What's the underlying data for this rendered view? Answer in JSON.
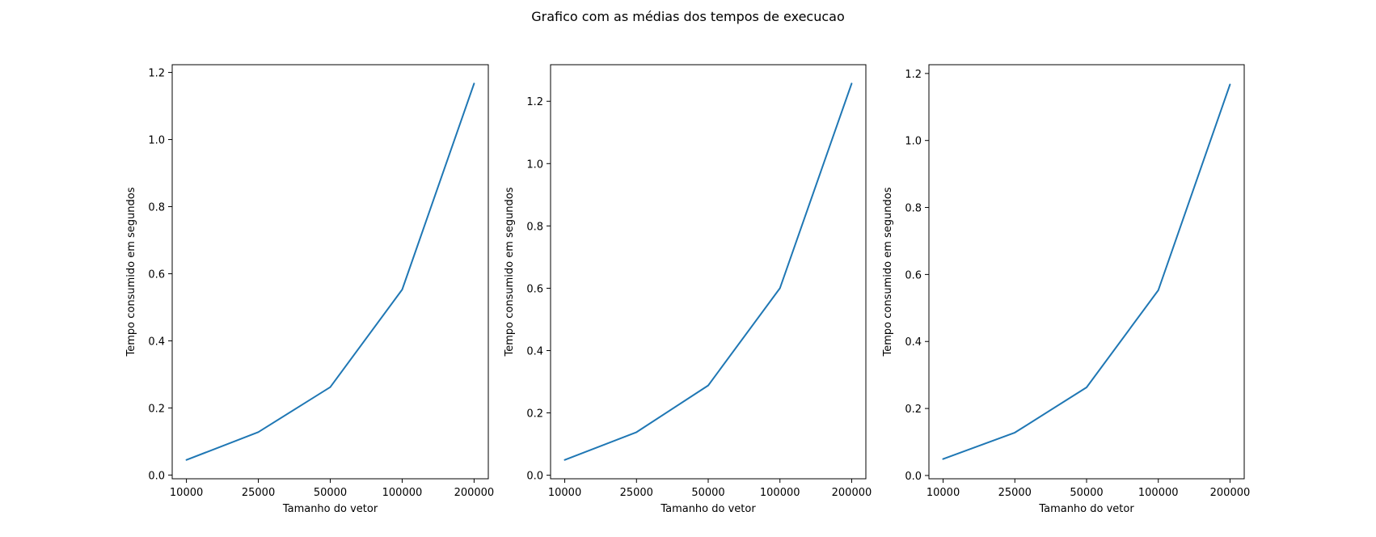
{
  "title": "Grafico com as médias dos tempos de execucao",
  "chart_data": [
    {
      "type": "line",
      "categories": [
        "10000",
        "25000",
        "50000",
        "100000",
        "200000"
      ],
      "series": [
        {
          "values": [
            0.045,
            0.128,
            0.262,
            0.553,
            1.167
          ]
        }
      ],
      "xlabel": "Tamanho do vetor",
      "ylabel": "Tempo consumido em segundos",
      "ylim": [
        -0.0111,
        1.2231
      ],
      "yticks": [
        0.0,
        0.2,
        0.4,
        0.6,
        0.8,
        1.0,
        1.2
      ],
      "ytick_labels": [
        "0.0",
        "0.2",
        "0.4",
        "0.6",
        "0.8",
        "1.0",
        "1.2"
      ],
      "grid": false,
      "color": "#1f77b4"
    },
    {
      "type": "line",
      "categories": [
        "10000",
        "25000",
        "50000",
        "100000",
        "200000"
      ],
      "series": [
        {
          "values": [
            0.049,
            0.138,
            0.288,
            0.6,
            1.257
          ]
        }
      ],
      "xlabel": "Tamanho do vetor",
      "ylabel": "Tempo consumido em segundos",
      "ylim": [
        -0.0114,
        1.3174
      ],
      "yticks": [
        0.0,
        0.2,
        0.4,
        0.6,
        0.8,
        1.0,
        1.2
      ],
      "ytick_labels": [
        "0.0",
        "0.2",
        "0.4",
        "0.6",
        "0.8",
        "1.0",
        "1.2"
      ],
      "grid": false,
      "color": "#1f77b4"
    },
    {
      "type": "line",
      "categories": [
        "10000",
        "25000",
        "50000",
        "100000",
        "200000"
      ],
      "series": [
        {
          "values": [
            0.049,
            0.128,
            0.263,
            0.553,
            1.167
          ]
        }
      ],
      "xlabel": "Tamanho do vetor",
      "ylabel": "Tempo consumido em segundos",
      "ylim": [
        -0.0098,
        1.2262
      ],
      "yticks": [
        0.0,
        0.2,
        0.4,
        0.6,
        0.8,
        1.0,
        1.2
      ],
      "ytick_labels": [
        "0.0",
        "0.2",
        "0.4",
        "0.6",
        "0.8",
        "1.0",
        "1.2"
      ],
      "grid": false,
      "color": "#1f77b4"
    }
  ]
}
